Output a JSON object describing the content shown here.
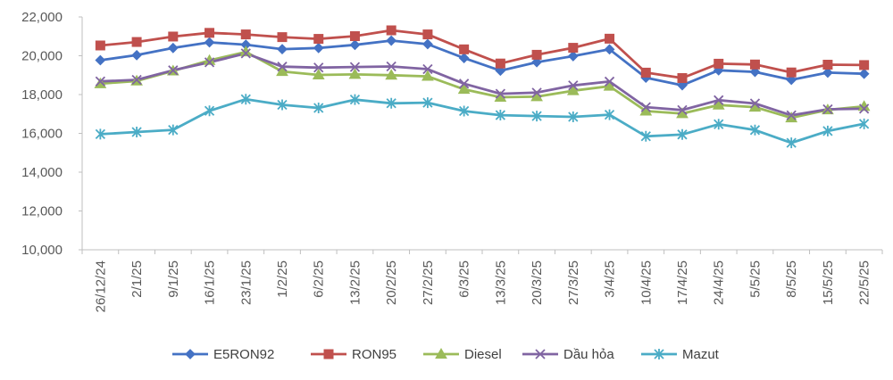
{
  "chart_data": {
    "type": "line",
    "title": "",
    "xlabel": "",
    "ylabel": "",
    "ylim": [
      10000,
      22000
    ],
    "yticks": [
      10000,
      12000,
      14000,
      16000,
      18000,
      20000,
      22000
    ],
    "ytick_labels": [
      "10,000",
      "12,000",
      "14,000",
      "16,000",
      "18,000",
      "20,000",
      "22,000"
    ],
    "grid": false,
    "legend_position": "bottom",
    "categories": [
      "26/12/24",
      "2/1/25",
      "9/1/25",
      "16/1/25",
      "23/1/25",
      "1/2/25",
      "6/2/25",
      "13/2/25",
      "20/2/25",
      "27/2/25",
      "6/3/25",
      "13/3/25",
      "20/3/25",
      "27/3/25",
      "3/4/25",
      "10/4/25",
      "17/4/25",
      "24/4/25",
      "5/5/25",
      "8/5/25",
      "15/5/25",
      "22/5/25"
    ],
    "series": [
      {
        "name": "E5RON92",
        "color": "#4472C4",
        "marker": "diamond",
        "values": [
          19770,
          20030,
          20400,
          20690,
          20570,
          20340,
          20400,
          20560,
          20780,
          20600,
          19880,
          19230,
          19670,
          19980,
          20330,
          18870,
          18480,
          19250,
          19170,
          18760,
          19130,
          19070
        ]
      },
      {
        "name": "RON95",
        "color": "#C0504D",
        "marker": "square",
        "values": [
          20530,
          20710,
          20990,
          21180,
          21100,
          20960,
          20870,
          21010,
          21310,
          21100,
          20330,
          19600,
          20050,
          20410,
          20880,
          19130,
          18850,
          19590,
          19550,
          19140,
          19540,
          19520
        ]
      },
      {
        "name": "Diesel",
        "color": "#9BBB59",
        "marker": "triangle",
        "values": [
          18560,
          18700,
          19220,
          19760,
          20200,
          19190,
          19010,
          19040,
          19000,
          18940,
          18270,
          17860,
          17890,
          18200,
          18430,
          17150,
          17020,
          17460,
          17350,
          16800,
          17210,
          17390
        ]
      },
      {
        "name": "Dầu hỏa",
        "color": "#8064A2",
        "marker": "x",
        "values": [
          18680,
          18760,
          19250,
          19660,
          20120,
          19440,
          19390,
          19420,
          19450,
          19310,
          18560,
          18040,
          18100,
          18470,
          18670,
          17350,
          17200,
          17710,
          17540,
          16930,
          17240,
          17270
        ]
      },
      {
        "name": "Mazut",
        "color": "#4BACC6",
        "marker": "star",
        "values": [
          15960,
          16070,
          16180,
          17160,
          17760,
          17470,
          17310,
          17740,
          17550,
          17580,
          17150,
          16940,
          16890,
          16850,
          16960,
          15850,
          15940,
          16470,
          16170,
          15510,
          16120,
          16490
        ]
      }
    ]
  }
}
